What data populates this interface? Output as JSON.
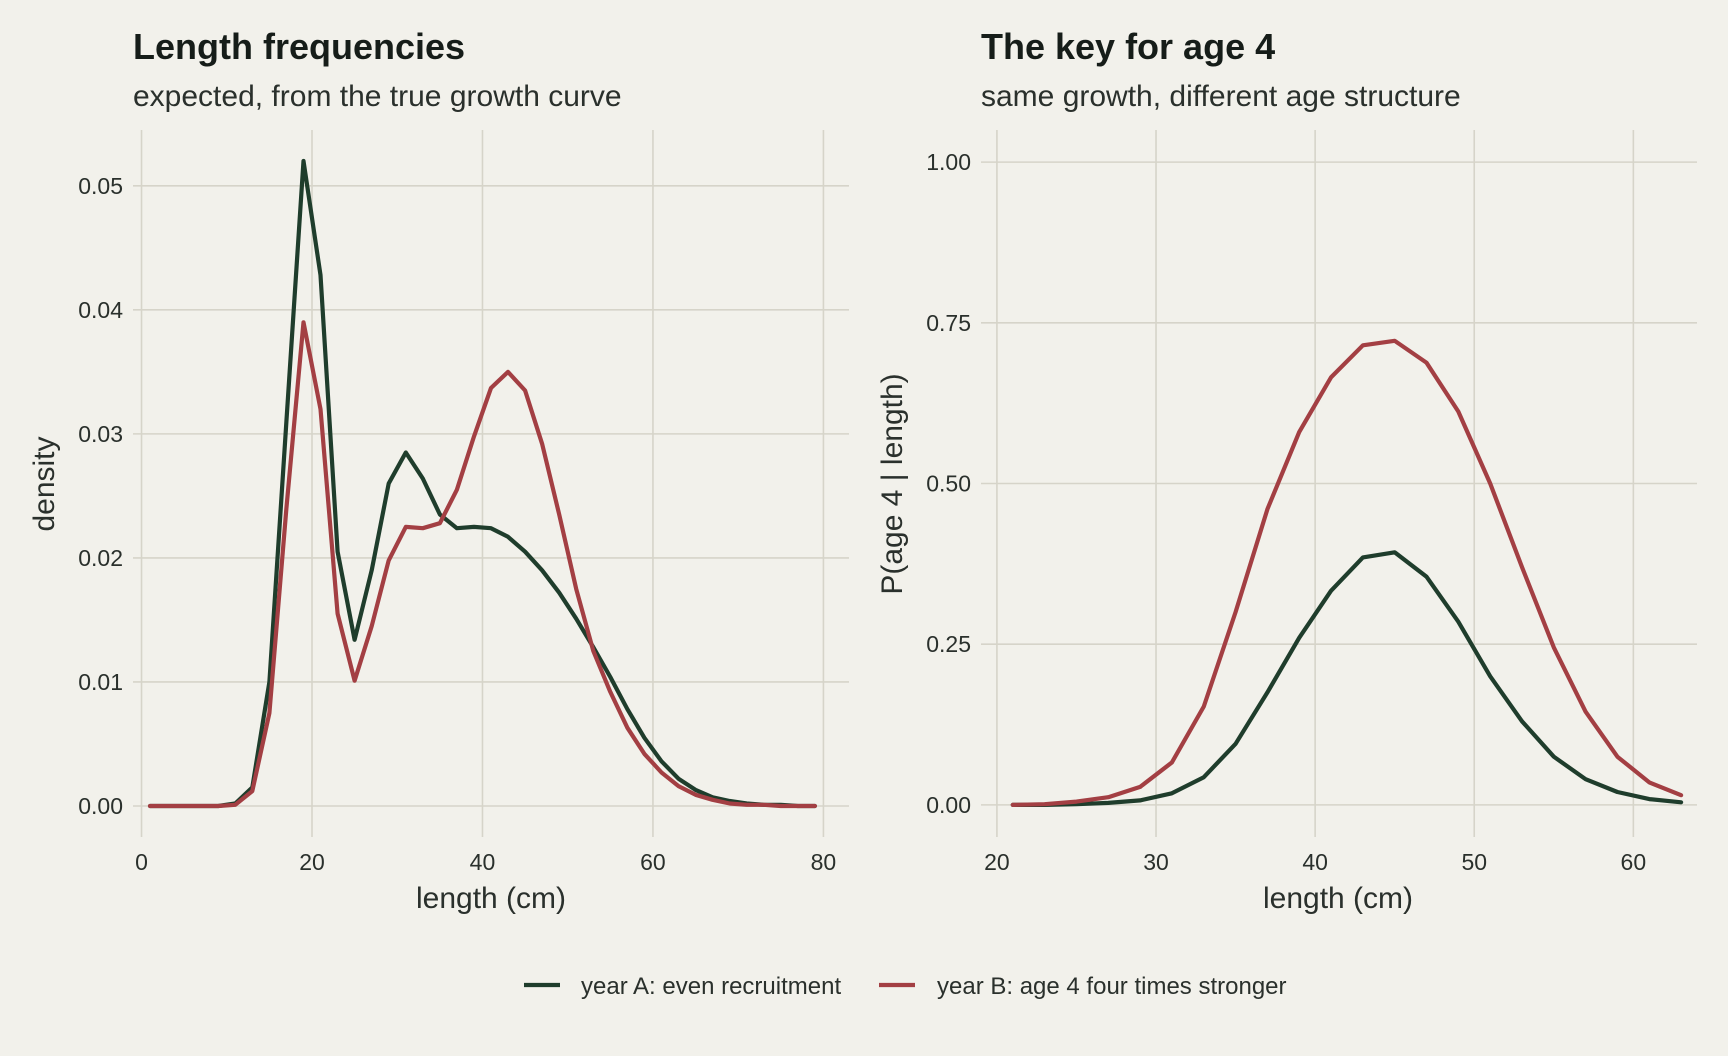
{
  "colors": {
    "background": "#f2f1eb",
    "grid": "#d6d4c9",
    "series_a": "#1f3d2c",
    "series_b": "#a33f43"
  },
  "legend": {
    "position": "bottom",
    "items": [
      {
        "label": "year A: even recruitment",
        "color": "#1f3d2c"
      },
      {
        "label": "year B: age 4 four times stronger",
        "color": "#a33f43"
      }
    ]
  },
  "chart_data": [
    {
      "type": "line",
      "title": "Length frequencies",
      "subtitle": "expected, from the true growth curve",
      "xlabel": "length (cm)",
      "ylabel": "density",
      "xlim": [
        -1,
        83
      ],
      "ylim": [
        -0.0025,
        0.0545
      ],
      "xticks": [
        0,
        20,
        40,
        60,
        80
      ],
      "xtick_labels": [
        "0",
        "20",
        "40",
        "60",
        "80"
      ],
      "yticks": [
        0,
        0.01,
        0.02,
        0.03,
        0.04,
        0.05
      ],
      "ytick_labels": [
        "0.00",
        "0.01",
        "0.02",
        "0.03",
        "0.04",
        "0.05"
      ],
      "grid": true,
      "x": [
        1,
        3,
        5,
        7,
        9,
        11,
        13,
        15,
        17,
        19,
        21,
        23,
        25,
        27,
        29,
        31,
        33,
        35,
        37,
        39,
        41,
        43,
        45,
        47,
        49,
        51,
        53,
        55,
        57,
        59,
        61,
        63,
        65,
        67,
        69,
        71,
        73,
        75,
        77,
        79
      ],
      "series": [
        {
          "name": "year A: even recruitment",
          "color": "#1f3d2c",
          "values": [
            0,
            0,
            0,
            0,
            0,
            0.0002,
            0.0015,
            0.01,
            0.031,
            0.052,
            0.0428,
            0.0205,
            0.0134,
            0.019,
            0.026,
            0.0285,
            0.0264,
            0.0235,
            0.0224,
            0.0225,
            0.0224,
            0.0217,
            0.0205,
            0.019,
            0.0172,
            0.0151,
            0.0128,
            0.0104,
            0.0078,
            0.0055,
            0.0036,
            0.0022,
            0.0013,
            0.0007,
            0.0004,
            0.0002,
            0.0001,
            0.0001,
            0,
            0
          ]
        },
        {
          "name": "year B: age 4 four times stronger",
          "color": "#a33f43",
          "values": [
            0,
            0,
            0,
            0,
            0,
            0.0001,
            0.0012,
            0.0075,
            0.024,
            0.039,
            0.032,
            0.0155,
            0.0101,
            0.0145,
            0.0198,
            0.0225,
            0.0224,
            0.0228,
            0.0255,
            0.0298,
            0.0337,
            0.035,
            0.0335,
            0.0292,
            0.0235,
            0.0175,
            0.0125,
            0.0092,
            0.0063,
            0.0042,
            0.0027,
            0.0016,
            0.0009,
            0.0005,
            0.0002,
            0.0001,
            0.0001,
            0,
            0,
            0
          ]
        }
      ]
    },
    {
      "type": "line",
      "title": "The key for age 4",
      "subtitle": "same growth, different age structure",
      "xlabel": "length (cm)",
      "ylabel": "P(age 4 | length)",
      "xlim": [
        19,
        64
      ],
      "ylim": [
        -0.05,
        1.05
      ],
      "xticks": [
        20,
        30,
        40,
        50,
        60
      ],
      "xtick_labels": [
        "20",
        "30",
        "40",
        "50",
        "60"
      ],
      "yticks": [
        0,
        0.25,
        0.5,
        0.75,
        1
      ],
      "ytick_labels": [
        "0.00",
        "0.25",
        "0.50",
        "0.75",
        "1.00"
      ],
      "grid": true,
      "x": [
        21,
        23,
        25,
        27,
        29,
        31,
        33,
        35,
        37,
        39,
        41,
        43,
        45,
        47,
        49,
        51,
        53,
        55,
        57,
        59,
        61,
        63
      ],
      "series": [
        {
          "name": "year A: even recruitment",
          "color": "#1f3d2c",
          "values": [
            0,
            0,
            0.001,
            0.003,
            0.007,
            0.018,
            0.043,
            0.095,
            0.175,
            0.26,
            0.333,
            0.385,
            0.393,
            0.355,
            0.285,
            0.2,
            0.13,
            0.075,
            0.04,
            0.02,
            0.009,
            0.004
          ]
        },
        {
          "name": "year B: age 4 four times stronger",
          "color": "#a33f43",
          "values": [
            0,
            0.001,
            0.005,
            0.012,
            0.028,
            0.066,
            0.153,
            0.3,
            0.46,
            0.58,
            0.665,
            0.715,
            0.722,
            0.688,
            0.612,
            0.5,
            0.37,
            0.245,
            0.145,
            0.075,
            0.035,
            0.015
          ]
        }
      ]
    }
  ]
}
